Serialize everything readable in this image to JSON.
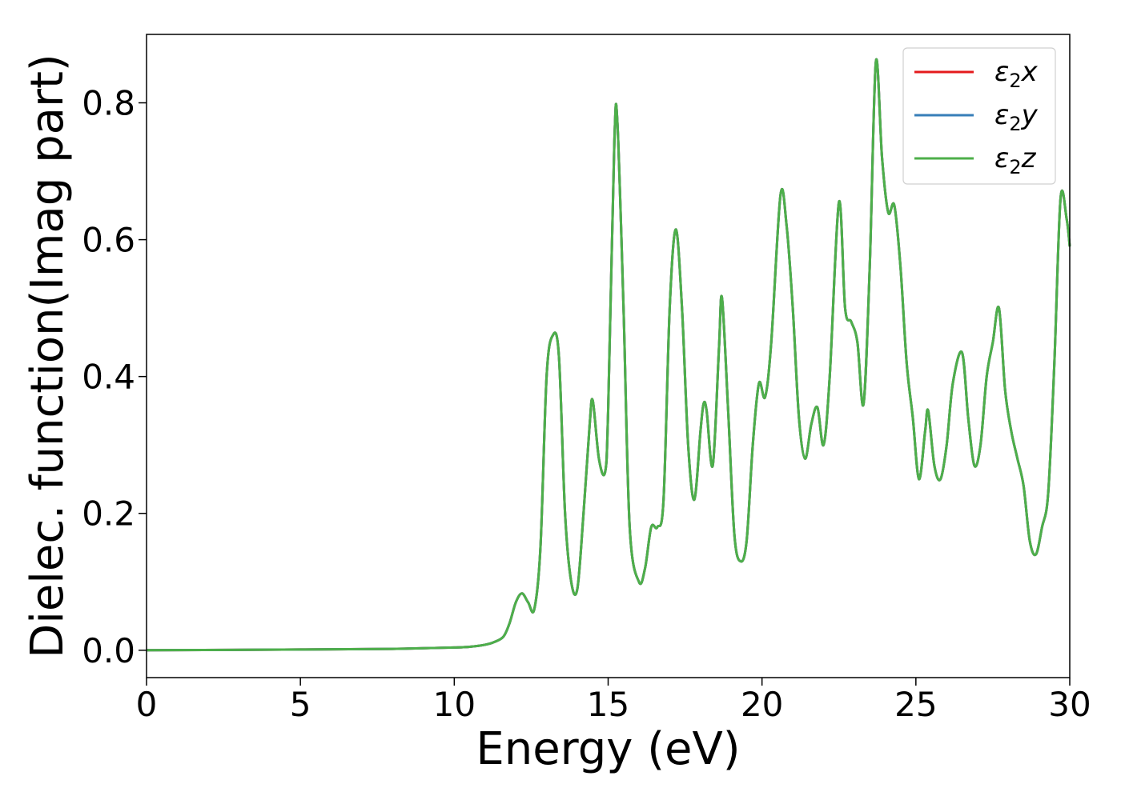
{
  "chart_data": {
    "type": "line",
    "xlabel": "Energy (eV)",
    "ylabel": "Dielec. function(Imag part)",
    "xlim": [
      0,
      30
    ],
    "ylim": [
      -0.04,
      0.9
    ],
    "x_ticks": [
      0,
      5,
      10,
      15,
      20,
      25,
      30
    ],
    "y_ticks": [
      0.0,
      0.2,
      0.4,
      0.6,
      0.8
    ],
    "x_tick_labels": [
      "0",
      "5",
      "10",
      "15",
      "20",
      "25",
      "30"
    ],
    "y_tick_labels": [
      "0.0",
      "0.2",
      "0.4",
      "0.6",
      "0.8"
    ],
    "grid": false,
    "legend_position": "top-right",
    "series": [
      {
        "name": "ε2x",
        "legend": {
          "main": "ε",
          "sub": "2",
          "suffix": "x"
        },
        "color": "#e41a1c",
        "x": [
          0,
          5,
          8,
          9,
          10,
          10.5,
          11,
          11.3,
          11.6,
          11.8,
          12.0,
          12.2,
          12.4,
          12.6,
          12.8,
          13.0,
          13.2,
          13.4,
          13.6,
          13.8,
          14.0,
          14.2,
          14.4,
          14.5,
          14.7,
          14.9,
          15.0,
          15.2,
          15.3,
          15.5,
          15.7,
          16.0,
          16.2,
          16.4,
          16.6,
          16.8,
          17.0,
          17.2,
          17.4,
          17.6,
          17.8,
          18.0,
          18.1,
          18.2,
          18.4,
          18.6,
          18.7,
          18.9,
          19.1,
          19.3,
          19.5,
          19.7,
          19.9,
          20.1,
          20.3,
          20.6,
          20.8,
          21.0,
          21.2,
          21.4,
          21.6,
          21.8,
          22.0,
          22.2,
          22.5,
          22.7,
          22.9,
          23.1,
          23.3,
          23.5,
          23.7,
          23.9,
          24.1,
          24.3,
          24.5,
          24.7,
          24.9,
          25.1,
          25.3,
          25.4,
          25.6,
          25.8,
          26.0,
          26.2,
          26.5,
          26.7,
          26.9,
          27.1,
          27.3,
          27.5,
          27.7,
          27.9,
          28.1,
          28.3,
          28.5,
          28.7,
          28.9,
          29.1,
          29.3,
          29.5,
          29.7,
          29.9,
          30.0
        ],
        "y": [
          0.0,
          0.001,
          0.002,
          0.003,
          0.004,
          0.005,
          0.008,
          0.012,
          0.02,
          0.04,
          0.07,
          0.083,
          0.07,
          0.06,
          0.15,
          0.4,
          0.46,
          0.43,
          0.2,
          0.1,
          0.09,
          0.2,
          0.33,
          0.365,
          0.28,
          0.26,
          0.35,
          0.74,
          0.772,
          0.5,
          0.18,
          0.1,
          0.12,
          0.18,
          0.18,
          0.22,
          0.5,
          0.615,
          0.5,
          0.3,
          0.22,
          0.32,
          0.36,
          0.35,
          0.27,
          0.44,
          0.515,
          0.35,
          0.17,
          0.13,
          0.16,
          0.3,
          0.39,
          0.37,
          0.45,
          0.665,
          0.62,
          0.5,
          0.34,
          0.28,
          0.33,
          0.355,
          0.3,
          0.4,
          0.655,
          0.5,
          0.48,
          0.45,
          0.36,
          0.56,
          0.86,
          0.72,
          0.64,
          0.65,
          0.56,
          0.42,
          0.34,
          0.25,
          0.32,
          0.35,
          0.27,
          0.25,
          0.3,
          0.39,
          0.435,
          0.34,
          0.27,
          0.3,
          0.4,
          0.45,
          0.5,
          0.38,
          0.32,
          0.28,
          0.24,
          0.16,
          0.14,
          0.18,
          0.23,
          0.42,
          0.66,
          0.63,
          0.59
        ]
      },
      {
        "name": "ε2y",
        "legend": {
          "main": "ε",
          "sub": "2",
          "suffix": "y"
        },
        "color": "#377eb8",
        "same_as": "ε2x"
      },
      {
        "name": "ε2z",
        "legend": {
          "main": "ε",
          "sub": "2",
          "suffix": "z"
        },
        "color": "#4daf4a",
        "same_as": "ε2x"
      }
    ]
  }
}
